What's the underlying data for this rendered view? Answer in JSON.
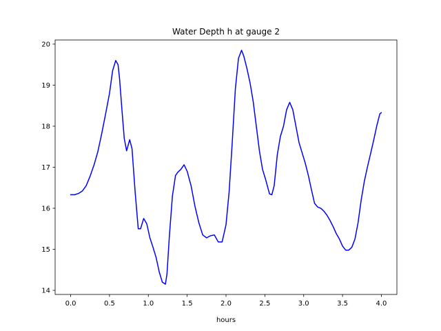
{
  "chart_data": {
    "type": "line",
    "title": "Water Depth h at gauge 2",
    "xlabel": "hours",
    "ylabel": "",
    "xlim": [
      -0.2,
      4.2
    ],
    "ylim": [
      13.9,
      20.1
    ],
    "xticks": [
      0.0,
      0.5,
      1.0,
      1.5,
      2.0,
      2.5,
      3.0,
      3.5,
      4.0
    ],
    "xtick_labels": [
      "0.0",
      "0.5",
      "1.0",
      "1.5",
      "2.0",
      "2.5",
      "3.0",
      "3.5",
      "4.0"
    ],
    "yticks": [
      14,
      15,
      16,
      17,
      18,
      19,
      20
    ],
    "ytick_labels": [
      "14",
      "15",
      "16",
      "17",
      "18",
      "19",
      "20"
    ],
    "grid": false,
    "legend": "none",
    "line_color": "#0000ff",
    "series": [
      {
        "x": [
          0.0,
          0.05,
          0.1,
          0.15,
          0.2,
          0.25,
          0.3,
          0.35,
          0.4,
          0.45,
          0.5,
          0.54,
          0.58,
          0.61,
          0.63,
          0.66,
          0.69,
          0.72,
          0.76,
          0.79,
          0.83,
          0.87,
          0.9,
          0.94,
          0.98,
          1.02,
          1.06,
          1.1,
          1.14,
          1.18,
          1.22,
          1.24,
          1.27,
          1.31,
          1.35,
          1.38,
          1.42,
          1.46,
          1.5,
          1.55,
          1.6,
          1.65,
          1.7,
          1.75,
          1.8,
          1.85,
          1.9,
          1.95,
          2.0,
          2.04,
          2.08,
          2.12,
          2.16,
          2.2,
          2.23,
          2.27,
          2.31,
          2.35,
          2.39,
          2.43,
          2.47,
          2.51,
          2.56,
          2.59,
          2.62,
          2.66,
          2.7,
          2.74,
          2.78,
          2.82,
          2.86,
          2.9,
          2.94,
          2.98,
          3.02,
          3.06,
          3.1,
          3.14,
          3.18,
          3.22,
          3.26,
          3.3,
          3.34,
          3.38,
          3.42,
          3.46,
          3.5,
          3.54,
          3.58,
          3.62,
          3.66,
          3.7,
          3.74,
          3.78,
          3.82,
          3.86,
          3.9,
          3.94,
          3.98,
          4.0
        ],
        "y": [
          16.33,
          16.33,
          16.36,
          16.42,
          16.55,
          16.78,
          17.05,
          17.38,
          17.82,
          18.3,
          18.8,
          19.35,
          19.6,
          19.5,
          19.15,
          18.4,
          17.7,
          17.4,
          17.67,
          17.45,
          16.4,
          15.5,
          15.5,
          15.75,
          15.62,
          15.28,
          15.05,
          14.8,
          14.45,
          14.2,
          14.15,
          14.4,
          15.3,
          16.3,
          16.8,
          16.88,
          16.95,
          17.06,
          16.9,
          16.55,
          16.05,
          15.65,
          15.35,
          15.28,
          15.33,
          15.35,
          15.18,
          15.18,
          15.6,
          16.4,
          17.6,
          18.9,
          19.65,
          19.85,
          19.7,
          19.4,
          19.05,
          18.6,
          18.0,
          17.4,
          16.95,
          16.7,
          16.35,
          16.33,
          16.55,
          17.3,
          17.75,
          18.0,
          18.4,
          18.58,
          18.4,
          18.0,
          17.6,
          17.35,
          17.1,
          16.8,
          16.45,
          16.12,
          16.03,
          16.0,
          15.93,
          15.83,
          15.7,
          15.55,
          15.38,
          15.25,
          15.08,
          14.98,
          14.98,
          15.05,
          15.25,
          15.65,
          16.2,
          16.65,
          17.0,
          17.32,
          17.65,
          18.0,
          18.3,
          18.33
        ]
      }
    ]
  }
}
